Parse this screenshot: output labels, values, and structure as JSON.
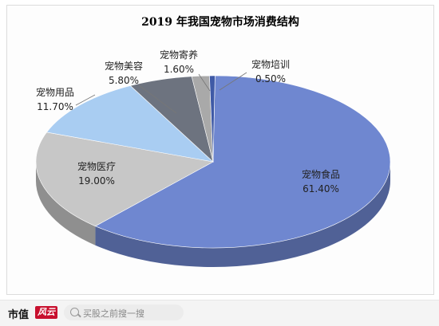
{
  "chart_data": {
    "type": "pie",
    "title": "2019 年我国宠物市场消费结构",
    "slices": [
      {
        "label": "宠物食品",
        "value": 61.4,
        "display": "61.40%",
        "color": "#6f87d0"
      },
      {
        "label": "宠物医疗",
        "value": 19.0,
        "display": "19.00%",
        "color": "#c7c7c7"
      },
      {
        "label": "宠物用品",
        "value": 11.7,
        "display": "11.70%",
        "color": "#a9cdf2"
      },
      {
        "label": "宠物美容",
        "value": 5.8,
        "display": "5.80%",
        "color": "#6d737f"
      },
      {
        "label": "宠物寄养",
        "value": 1.6,
        "display": "1.60%",
        "color": "#a9a9a9"
      },
      {
        "label": "宠物培训",
        "value": 0.5,
        "display": "0.50%",
        "color": "#3f5aa6"
      }
    ]
  },
  "footer": {
    "brand": "市值",
    "brand_logo": "风云",
    "search_placeholder": "买股之前搜一搜"
  }
}
